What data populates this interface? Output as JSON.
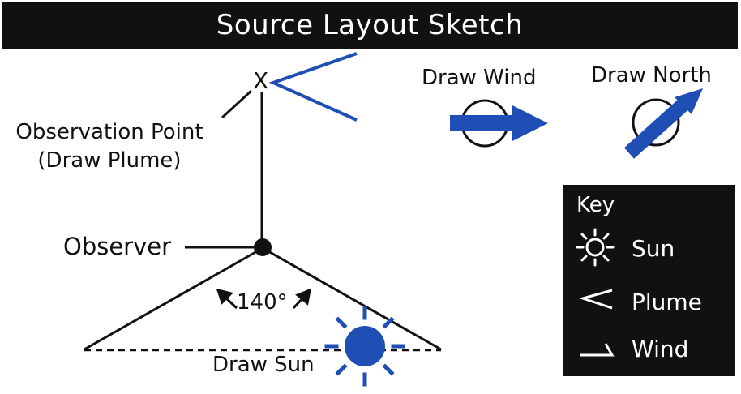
{
  "title": "Source Layout Sketch",
  "labels": {
    "observation_point": "Observation Point",
    "draw_plume": "(Draw Plume)",
    "x_mark": "X",
    "observer": "Observer",
    "angle": "140°",
    "draw_sun": "Draw Sun",
    "draw_wind": "Draw Wind",
    "draw_north": "Draw North"
  },
  "key": {
    "title": "Key",
    "items": [
      {
        "icon": "sun-icon",
        "label": "Sun"
      },
      {
        "icon": "plume-icon",
        "label": "Plume"
      },
      {
        "icon": "wind-icon",
        "label": "Wind"
      }
    ]
  },
  "colors": {
    "accent_blue": "#1f4fb4",
    "dark": "#111111",
    "background": "#ffffff"
  }
}
